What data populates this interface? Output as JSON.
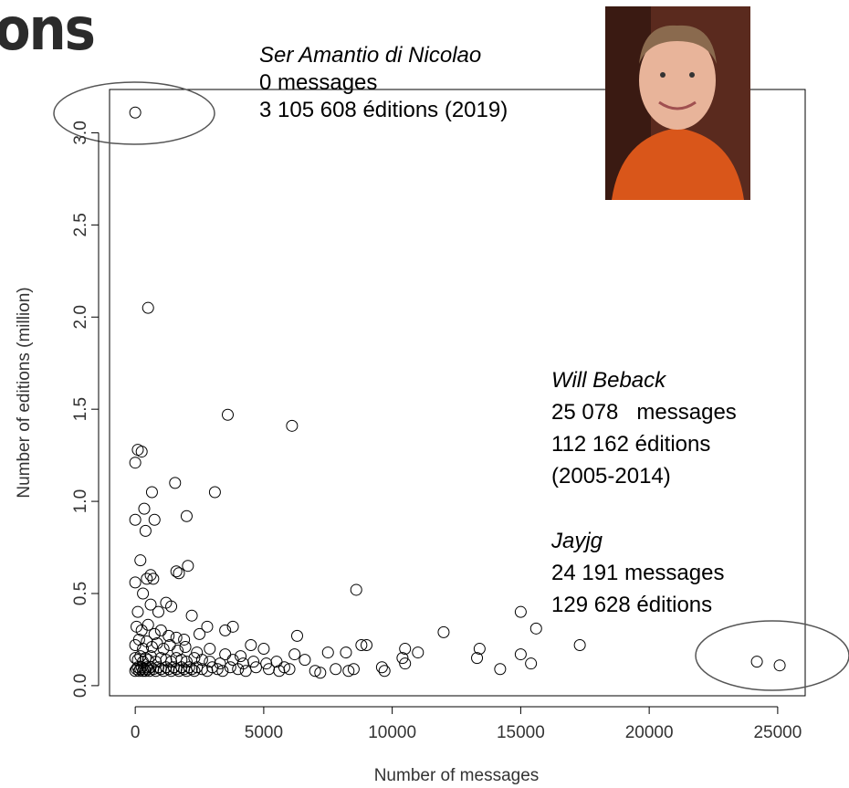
{
  "chart_data": {
    "type": "scatter",
    "title": "ons",
    "xlabel": "Number of messages",
    "ylabel": "Number of editions (million)",
    "xlim": [
      -1000,
      26070
    ],
    "ylim": [
      -0.055,
      3.235
    ],
    "xticks": [
      0,
      5000,
      10000,
      15000,
      20000,
      25000
    ],
    "yticks": [
      {
        "value": 0,
        "label": "0.0"
      },
      0.5,
      {
        "value": 1,
        "label": "1.0"
      },
      1.5,
      {
        "value": 2,
        "label": "2.0"
      },
      2.5,
      {
        "value": 3,
        "label": "3.0"
      }
    ],
    "color": "#000000",
    "x": [
      0,
      500,
      3600,
      6100,
      100,
      250,
      0,
      1550,
      3100,
      650,
      0,
      750,
      2000,
      350,
      400,
      200,
      2050,
      1600,
      1700,
      600,
      450,
      700,
      0,
      8600,
      15000,
      15600,
      12000,
      17300,
      6300,
      13400,
      13300,
      15000,
      15400,
      14200,
      8800,
      9000,
      10500,
      11000,
      10400,
      10500,
      9600,
      9700,
      8200,
      8500,
      8300,
      7500,
      7800,
      7000,
      7200,
      6600,
      6200,
      5800,
      5500,
      5000,
      4500,
      3800,
      3500,
      2500,
      2800,
      2200,
      1200,
      1400,
      900,
      300,
      600,
      100,
      24191,
      25078,
      0,
      50,
      100,
      150,
      200,
      250,
      300,
      350,
      400,
      450,
      500,
      550,
      600,
      700,
      800,
      900,
      1000,
      1100,
      1200,
      1300,
      1400,
      1500,
      1600,
      1700,
      1800,
      1900,
      2000,
      2100,
      2200,
      2300,
      2400,
      2600,
      2800,
      3000,
      3200,
      3400,
      3700,
      4000,
      4300,
      4700,
      5200,
      5600,
      6000,
      0,
      100,
      200,
      300,
      400,
      500,
      600,
      800,
      1000,
      1200,
      1400,
      1600,
      1800,
      2000,
      2300,
      2600,
      2900,
      3300,
      3800,
      4200,
      4600,
      5100,
      0,
      150,
      300,
      450,
      650,
      850,
      1100,
      1350,
      1650,
      1950,
      2400,
      2900,
      3500,
      4100,
      50,
      250,
      500,
      750,
      1000,
      1300,
      1600,
      1900
    ],
    "values": [
      3.11,
      2.05,
      1.47,
      1.41,
      1.28,
      1.27,
      1.21,
      1.1,
      1.05,
      1.05,
      0.9,
      0.9,
      0.92,
      0.96,
      0.84,
      0.68,
      0.65,
      0.62,
      0.61,
      0.6,
      0.58,
      0.58,
      0.56,
      0.52,
      0.4,
      0.31,
      0.29,
      0.22,
      0.27,
      0.2,
      0.15,
      0.17,
      0.12,
      0.09,
      0.22,
      0.22,
      0.2,
      0.18,
      0.15,
      0.12,
      0.1,
      0.08,
      0.18,
      0.09,
      0.08,
      0.18,
      0.09,
      0.08,
      0.07,
      0.14,
      0.17,
      0.1,
      0.13,
      0.2,
      0.22,
      0.32,
      0.3,
      0.28,
      0.32,
      0.38,
      0.45,
      0.43,
      0.4,
      0.5,
      0.44,
      0.4,
      0.13,
      0.11,
      0.08,
      0.09,
      0.1,
      0.08,
      0.09,
      0.1,
      0.08,
      0.09,
      0.08,
      0.1,
      0.09,
      0.08,
      0.1,
      0.09,
      0.08,
      0.1,
      0.09,
      0.08,
      0.1,
      0.09,
      0.08,
      0.1,
      0.09,
      0.08,
      0.1,
      0.09,
      0.08,
      0.1,
      0.09,
      0.08,
      0.1,
      0.09,
      0.08,
      0.1,
      0.09,
      0.08,
      0.1,
      0.09,
      0.08,
      0.1,
      0.09,
      0.08,
      0.09,
      0.15,
      0.14,
      0.16,
      0.13,
      0.15,
      0.14,
      0.16,
      0.13,
      0.15,
      0.14,
      0.13,
      0.15,
      0.14,
      0.13,
      0.15,
      0.14,
      0.13,
      0.12,
      0.14,
      0.12,
      0.13,
      0.12,
      0.22,
      0.25,
      0.2,
      0.24,
      0.21,
      0.23,
      0.2,
      0.22,
      0.19,
      0.21,
      0.18,
      0.2,
      0.17,
      0.16,
      0.32,
      0.3,
      0.33,
      0.28,
      0.3,
      0.27,
      0.26,
      0.25
    ],
    "annotations": [
      {
        "lines": [
          "Ser Amantio di Nicolao",
          "0 messages",
          "3 105 608 éditions (2019)"
        ]
      },
      {
        "lines": [
          "Will Beback",
          "25 078   messages",
          "112 162 éditions",
          "(2005-2014)"
        ]
      },
      {
        "lines": [
          "Jayjg",
          "24 191 messages",
          "129 628 éditions"
        ]
      }
    ]
  }
}
